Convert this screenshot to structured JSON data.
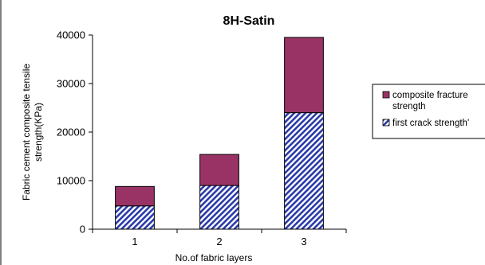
{
  "chart_data": {
    "type": "bar",
    "stacked": true,
    "title": "8H-Satin",
    "xlabel": "No.of fabric layers",
    "ylabel_line1": "Fabric cement composite  tensile",
    "ylabel_line2": "strength(KPa)",
    "categories": [
      "1",
      "2",
      "3"
    ],
    "ylim": [
      0,
      40000
    ],
    "yticks": [
      "0",
      "10000",
      "20000",
      "30000",
      "40000"
    ],
    "ytick_values": [
      0,
      10000,
      20000,
      30000,
      40000
    ],
    "series": [
      {
        "name": "first crack strength'",
        "values": [
          4800,
          9000,
          24000
        ],
        "color": "#2a3aa8",
        "pattern": "diagonal-hatch"
      },
      {
        "name": "composite fracture strength",
        "values": [
          4000,
          6400,
          15500
        ],
        "color": "#993366",
        "pattern": "solid"
      }
    ],
    "legend": {
      "placement": "right",
      "entries": [
        "composite fracture strength",
        "first crack strength'"
      ]
    },
    "grid": false
  }
}
